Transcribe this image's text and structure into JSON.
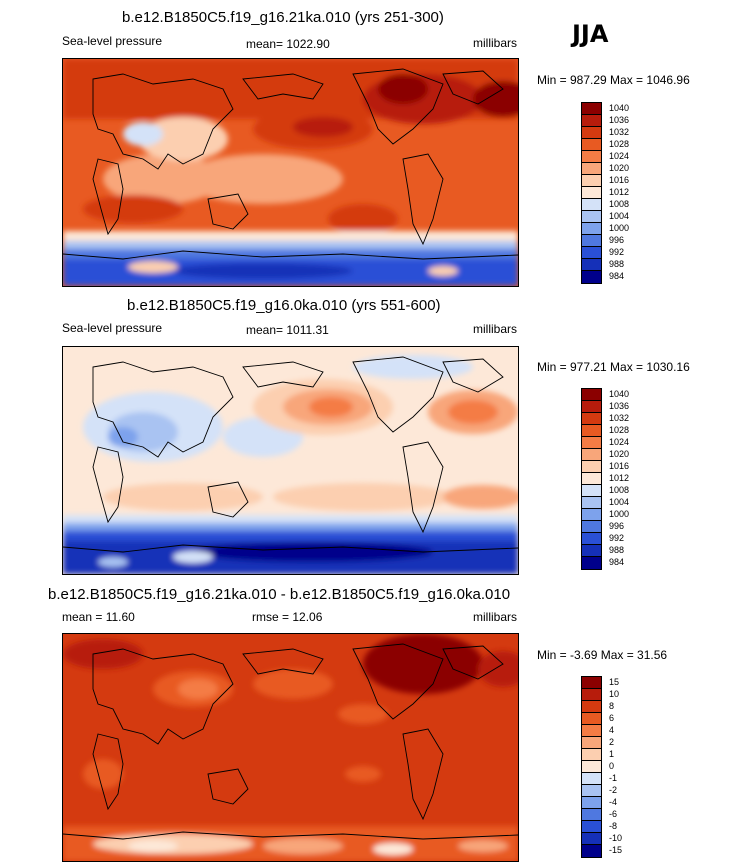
{
  "season": "JJA",
  "panels": [
    {
      "title": "b.e12.B1850C5.f19_g16.21ka.010 (yrs 251-300)",
      "left_label": "Sea-level pressure",
      "center_label": "mean= 1022.90",
      "right_label": "millibars",
      "minmax": "Min = 987.29 Max = 1046.96"
    },
    {
      "title": "b.e12.B1850C5.f19_g16.0ka.010 (yrs 551-600)",
      "left_label": "Sea-level pressure",
      "center_label": "mean= 1011.31",
      "right_label": "millibars",
      "minmax": "Min = 977.21 Max = 1030.16"
    },
    {
      "title": "b.e12.B1850C5.f19_g16.21ka.010 - b.e12.B1850C5.f19_g16.0ka.010",
      "left_label": "mean =  11.60",
      "center_label": "rmse =  12.06",
      "right_label": "millibars",
      "minmax": "Min =  -3.69 Max =  31.56"
    }
  ],
  "chart_data": [
    {
      "type": "heatmap",
      "title": "b.e12.B1850C5.f19_g16.21ka.010 (yrs 251-300)",
      "variable": "Sea-level pressure",
      "units": "millibars",
      "mean": 1022.9,
      "min": 987.29,
      "max": 1046.96,
      "colorbar_levels": [
        "1040",
        "1036",
        "1032",
        "1028",
        "1024",
        "1020",
        "1016",
        "1012",
        "1008",
        "1004",
        "1000",
        "996",
        "992",
        "988",
        "984"
      ],
      "colorbar_colors": [
        "#8b0000",
        "#b71c0c",
        "#d43a10",
        "#e85a22",
        "#f47c45",
        "#f8a67a",
        "#fccfb0",
        "#fde8d8",
        "#d4e2f8",
        "#a9c3f2",
        "#7da2ec",
        "#4f78e0",
        "#2a50d6",
        "#1530b8",
        "#00008b"
      ]
    },
    {
      "type": "heatmap",
      "title": "b.e12.B1850C5.f19_g16.0ka.010 (yrs 551-600)",
      "variable": "Sea-level pressure",
      "units": "millibars",
      "mean": 1011.31,
      "min": 977.21,
      "max": 1030.16,
      "colorbar_levels": [
        "1040",
        "1036",
        "1032",
        "1028",
        "1024",
        "1020",
        "1016",
        "1012",
        "1008",
        "1004",
        "1000",
        "996",
        "992",
        "988",
        "984"
      ],
      "colorbar_colors": [
        "#8b0000",
        "#b71c0c",
        "#d43a10",
        "#e85a22",
        "#f47c45",
        "#f8a67a",
        "#fccfb0",
        "#fde8d8",
        "#d4e2f8",
        "#a9c3f2",
        "#7da2ec",
        "#4f78e0",
        "#2a50d6",
        "#1530b8",
        "#00008b"
      ]
    },
    {
      "type": "heatmap",
      "title": "b.e12.B1850C5.f19_g16.21ka.010 - b.e12.B1850C5.f19_g16.0ka.010",
      "units": "millibars",
      "mean": 11.6,
      "rmse": 12.06,
      "min": -3.69,
      "max": 31.56,
      "colorbar_levels": [
        "15",
        "10",
        "8",
        "6",
        "4",
        "2",
        "1",
        "0",
        "-1",
        "-2",
        "-4",
        "-6",
        "-8",
        "-10",
        "-15"
      ],
      "colorbar_colors": [
        "#8b0000",
        "#b71c0c",
        "#d43a10",
        "#e85a22",
        "#f47c45",
        "#f8a67a",
        "#fccfb0",
        "#fde8d8",
        "#d4e2f8",
        "#a9c3f2",
        "#7da2ec",
        "#4f78e0",
        "#2a50d6",
        "#1530b8",
        "#00008b"
      ]
    }
  ]
}
